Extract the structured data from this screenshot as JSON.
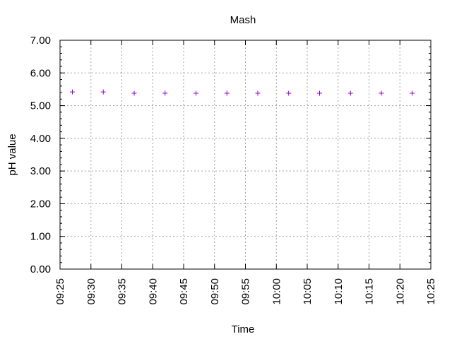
{
  "chart_data": {
    "type": "scatter",
    "title": "Mash",
    "xlabel": "Time",
    "ylabel": "pH value",
    "xlim": [
      "09:25",
      "10:25"
    ],
    "ylim": [
      0,
      7
    ],
    "grid": true,
    "marker": "+",
    "color": "#9400d3",
    "x_ticks": [
      "09:25",
      "09:30",
      "09:35",
      "09:40",
      "09:45",
      "09:50",
      "09:55",
      "10:00",
      "10:05",
      "10:10",
      "10:15",
      "10:20",
      "10:25"
    ],
    "y_ticks": [
      "0.00",
      "1.00",
      "2.00",
      "3.00",
      "4.00",
      "5.00",
      "6.00",
      "7.00"
    ],
    "series": [
      {
        "points": [
          {
            "x": "09:27",
            "y": 5.42
          },
          {
            "x": "09:32",
            "y": 5.42
          },
          {
            "x": "09:37",
            "y": 5.38
          },
          {
            "x": "09:42",
            "y": 5.38
          },
          {
            "x": "09:47",
            "y": 5.38
          },
          {
            "x": "09:52",
            "y": 5.38
          },
          {
            "x": "09:57",
            "y": 5.38
          },
          {
            "x": "10:02",
            "y": 5.38
          },
          {
            "x": "10:07",
            "y": 5.38
          },
          {
            "x": "10:12",
            "y": 5.38
          },
          {
            "x": "10:17",
            "y": 5.38
          },
          {
            "x": "10:22",
            "y": 5.38
          }
        ]
      }
    ]
  }
}
